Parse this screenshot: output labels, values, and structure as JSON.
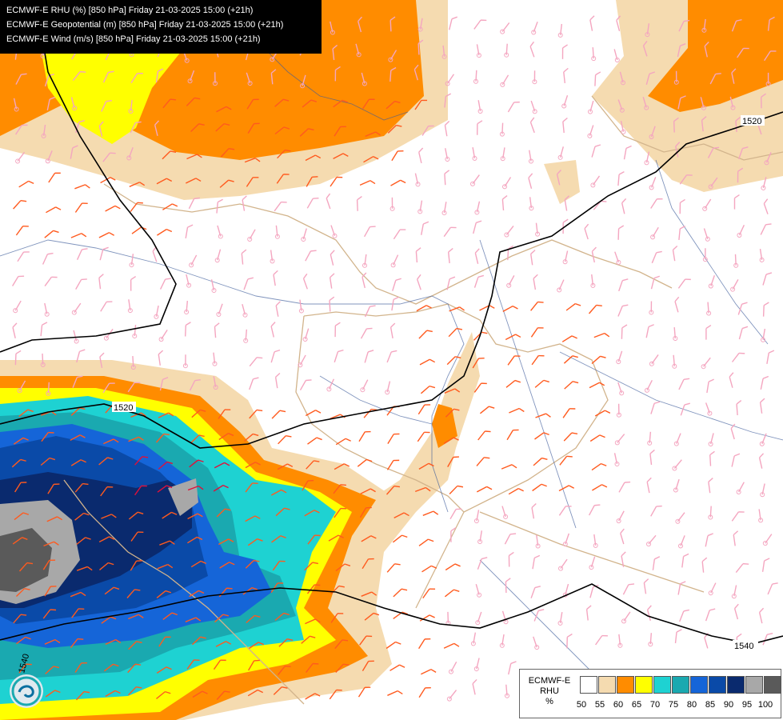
{
  "title_lines": [
    "ECMWF-E RHU (%) [850 hPa] Friday 21-03-2025 15:00 (+21h)",
    "ECMWF-E Geopotential (m) [850 hPa] Friday 21-03-2025 15:00 (+21h)",
    "ECMWF-E Wind (m/s) [850 hPa] Friday 21-03-2025 15:00 (+21h)"
  ],
  "legend": {
    "name_line1": "ECMWF-E",
    "name_line2": "RHU",
    "unit": "%",
    "levels": [
      "50",
      "55",
      "60",
      "65",
      "70",
      "75",
      "80",
      "85",
      "90",
      "95",
      "100"
    ],
    "colors": [
      "#ffffff",
      "#f5dbb0",
      "#ff8c00",
      "#ffff00",
      "#1ed2d2",
      "#1aa9b0",
      "#1565d8",
      "#0a4aa8",
      "#0a2a6e",
      "#a8a8a8",
      "#5a5a5a"
    ]
  },
  "isohypses": [
    {
      "label": "1520"
    },
    {
      "label": "1520"
    },
    {
      "label": "1540"
    },
    {
      "label": "1540"
    }
  ],
  "wind_barb_colors": {
    "calm": "#f4a6c0",
    "moderate": "#ff5a1e",
    "strong": "#e0103a"
  }
}
